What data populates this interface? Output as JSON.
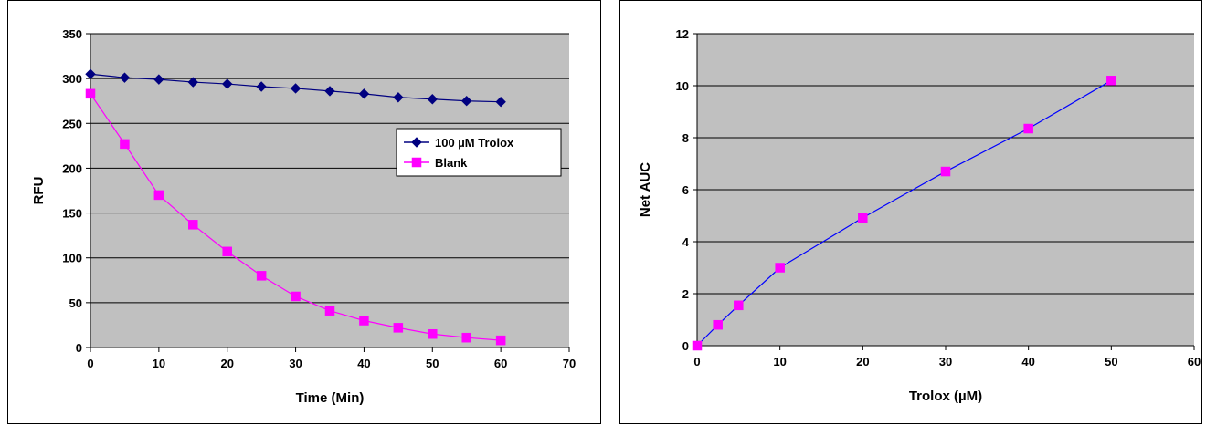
{
  "chart_data": [
    {
      "type": "line",
      "xlabel": "Time (Min)",
      "ylabel": "RFU",
      "xlim": [
        0,
        70
      ],
      "ylim": [
        0,
        350
      ],
      "xticks": [
        0,
        10,
        20,
        30,
        40,
        50,
        60,
        70
      ],
      "yticks": [
        0,
        50,
        100,
        150,
        200,
        250,
        300,
        350
      ],
      "grid": "horizontal",
      "plot_background": "#C0C0C0",
      "legend_position": "right",
      "series": [
        {
          "name": "100 µM Trolox",
          "color": "#000080",
          "marker": "diamond",
          "x": [
            0,
            5,
            10,
            15,
            20,
            25,
            30,
            35,
            40,
            45,
            50,
            55,
            60
          ],
          "values": [
            305,
            301,
            299,
            296,
            294,
            291,
            289,
            286,
            283,
            279,
            277,
            275,
            274
          ]
        },
        {
          "name": "Blank",
          "color": "#FF00FF",
          "marker": "square",
          "x": [
            0,
            5,
            10,
            15,
            20,
            25,
            30,
            35,
            40,
            45,
            50,
            55,
            60
          ],
          "values": [
            283,
            227,
            170,
            137,
            107,
            80,
            57,
            41,
            30,
            22,
            15,
            11,
            8
          ]
        }
      ]
    },
    {
      "type": "line",
      "xlabel": "Trolox (µM)",
      "ylabel": "Net AUC",
      "xlim": [
        0,
        60
      ],
      "ylim": [
        0,
        12
      ],
      "xticks": [
        0,
        10,
        20,
        30,
        40,
        50,
        60
      ],
      "yticks": [
        0,
        2,
        4,
        6,
        8,
        10,
        12
      ],
      "grid": "horizontal",
      "plot_background": "#C0C0C0",
      "legend_position": "none",
      "series": [
        {
          "line_color": "#0000FF",
          "marker_color": "#FF00FF",
          "marker": "square",
          "x": [
            0,
            2.5,
            5,
            10,
            20,
            30,
            40,
            50
          ],
          "values": [
            0,
            0.8,
            1.55,
            3.0,
            4.92,
            6.7,
            8.35,
            10.2
          ]
        }
      ]
    }
  ]
}
